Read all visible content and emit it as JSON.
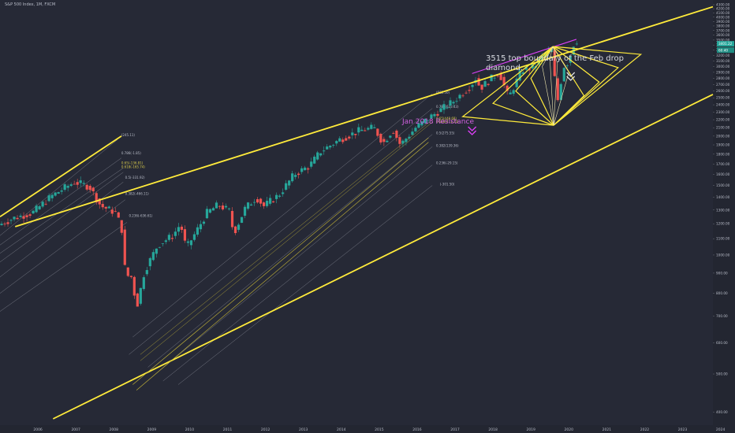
{
  "chart_title": "S&P 500 Index, 1M, FXCM",
  "chart_data": {
    "type": "candlestick",
    "timeframe": "1M",
    "x_range": [
      2005.5,
      2024.3
    ],
    "ylim": [
      385,
      4300
    ],
    "y_scale": "log",
    "y_ticks": [
      400,
      500,
      600,
      700,
      800,
      900,
      1000,
      1100,
      1200,
      1300,
      1400,
      1500,
      1600,
      1700,
      1800,
      1900,
      2000,
      2100,
      2200,
      2300,
      2400,
      2500,
      2600,
      2700,
      2800,
      2900,
      3000,
      3100,
      3200,
      3300,
      3400,
      3500,
      3600,
      3700,
      3800,
      3900,
      4000,
      4100,
      4200,
      4300
    ],
    "x_ticks": [
      "2006",
      "2007",
      "2008",
      "2009",
      "2010",
      "2011",
      "2012",
      "2013",
      "2014",
      "2015",
      "2016",
      "2017",
      "2018",
      "2019",
      "2020",
      "2021",
      "2022",
      "2023",
      "2024"
    ],
    "price_path": [
      [
        2005.5,
        1190
      ],
      [
        2005.9,
        1240
      ],
      [
        2006.4,
        1280
      ],
      [
        2006.9,
        1410
      ],
      [
        2007.3,
        1490
      ],
      [
        2007.5,
        1530
      ],
      [
        2007.9,
        1490
      ],
      [
        2008.2,
        1330
      ],
      [
        2008.6,
        1280
      ],
      [
        2008.75,
        1160
      ],
      [
        2008.85,
        890
      ],
      [
        2009.0,
        880
      ],
      [
        2009.15,
        740
      ],
      [
        2009.35,
        910
      ],
      [
        2009.7,
        1060
      ],
      [
        2010.1,
        1120
      ],
      [
        2010.3,
        1200
      ],
      [
        2010.45,
        1040
      ],
      [
        2010.7,
        1140
      ],
      [
        2011.0,
        1280
      ],
      [
        2011.3,
        1340
      ],
      [
        2011.6,
        1290
      ],
      [
        2011.7,
        1130
      ],
      [
        2012.0,
        1310
      ],
      [
        2012.3,
        1400
      ],
      [
        2012.5,
        1330
      ],
      [
        2012.9,
        1420
      ],
      [
        2013.3,
        1600
      ],
      [
        2013.7,
        1680
      ],
      [
        2014.0,
        1830
      ],
      [
        2014.5,
        1960
      ],
      [
        2015.0,
        2060
      ],
      [
        2015.4,
        2100
      ],
      [
        2015.65,
        1920
      ],
      [
        2015.9,
        2080
      ],
      [
        2016.1,
        1900
      ],
      [
        2016.5,
        2100
      ],
      [
        2016.9,
        2240
      ],
      [
        2017.5,
        2450
      ],
      [
        2017.95,
        2680
      ],
      [
        2018.1,
        2820
      ],
      [
        2018.2,
        2640
      ],
      [
        2018.7,
        2910
      ],
      [
        2018.95,
        2500
      ],
      [
        2019.3,
        2940
      ],
      [
        2019.6,
        2980
      ],
      [
        2019.9,
        3230
      ],
      [
        2020.1,
        3300
      ],
      [
        2020.2,
        2580
      ],
      [
        2020.25,
        2470
      ],
      [
        2020.4,
        3000
      ],
      [
        2020.55,
        3100
      ],
      [
        2020.6,
        3270
      ],
      [
        2020.7,
        3490
      ]
    ],
    "series": [
      {
        "name": "Upper channel line",
        "points": [
          [
            2005.9,
            1180
          ],
          [
            2024.3,
            4250
          ]
        ]
      },
      {
        "name": "Lower channel line",
        "points": [
          [
            2006.9,
            385
          ],
          [
            2024.3,
            2550
          ]
        ]
      },
      {
        "name": "2007 pitchfork line",
        "points": [
          [
            2005.5,
            1250
          ],
          [
            2008.7,
            2000
          ]
        ]
      },
      {
        "name": "Jan 2018 Resistance",
        "points": [
          [
            2017.95,
            2880
          ],
          [
            2020.7,
            3515
          ]
        ]
      }
    ],
    "fib_levels_left": [
      "(245.11)",
      "0.786(-1.85)",
      "0.65(-136.81)",
      "0.618(-165.74)",
      "0.5(-331.92)",
      "0.382(-466.11)",
      "0.236(-636.61)"
    ],
    "fib_levels_mid": [
      "(662.50)",
      "0.786(623.43)",
      "0.65(448.68)",
      "0.618(411.73)",
      "0.5(275.55)",
      "0.382(139.36)",
      "0.236(-29.15)",
      "(-301.50)"
    ],
    "price_labels": [
      "3401.22",
      "60:40"
    ],
    "annotations": [
      "3515 top boundary of the Feb drop diamond.",
      "Jan 2018 Resistance"
    ]
  },
  "annotations": {
    "note_3515": "3515 top boundary of the Feb drop diamond.",
    "jan_2018": "Jan 2018 Resistance"
  },
  "colors": {
    "background": "#262936",
    "up": "#26a69a",
    "down": "#ef5350",
    "channel": "#ffeb3b",
    "resistance": "#e040fb",
    "fib": "#8a8d98",
    "text": "#b8bcc8",
    "arrow_white": "#e0e0e0"
  }
}
